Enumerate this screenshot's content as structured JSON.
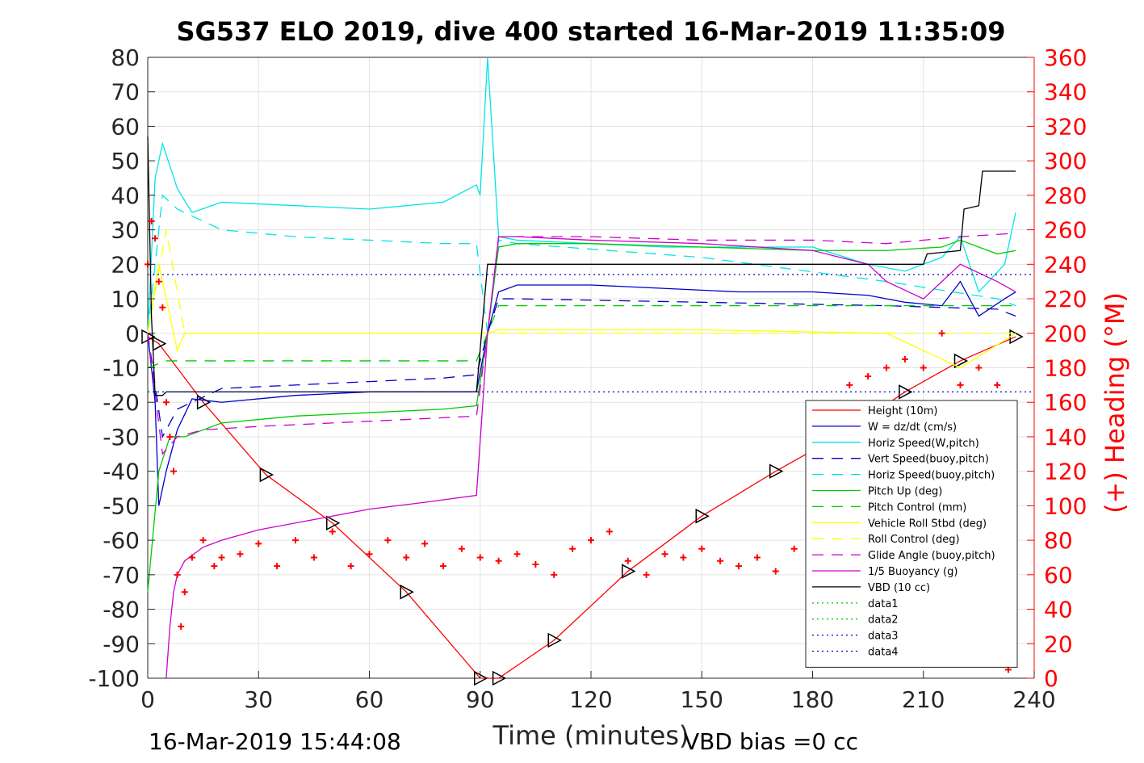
{
  "chart_data": {
    "type": "line",
    "title": "SG537 ELO 2019, dive 400 started 16-Mar-2019 11:35:09",
    "xlabel": "Time (minutes)",
    "ylabel_right": "(+) Heading (°M)",
    "footer_left": "16-Mar-2019 15:44:08",
    "footer_right": "VBD bias =0 cc",
    "xlim": [
      0,
      240
    ],
    "ylim": [
      -100,
      80
    ],
    "ylim_right": [
      0,
      360
    ],
    "x_ticks": [
      "0",
      "30",
      "60",
      "90",
      "120",
      "150",
      "180",
      "210",
      "240"
    ],
    "y_ticks": [
      "80",
      "70",
      "60",
      "50",
      "40",
      "30",
      "20",
      "10",
      "0",
      "-10",
      "-20",
      "-30",
      "-40",
      "-50",
      "-60",
      "-70",
      "-80",
      "-90",
      "-100"
    ],
    "y_ticks_right": [
      "360",
      "340",
      "320",
      "300",
      "280",
      "260",
      "240",
      "220",
      "200",
      "180",
      "160",
      "140",
      "120",
      "100",
      "80",
      "60",
      "40",
      "20",
      "0"
    ],
    "grid": true,
    "legend_position": "bottom-right",
    "series": [
      {
        "name": "Height (10m)",
        "color": "#ff0000",
        "style": "solid",
        "marker": "triangle",
        "x": [
          0,
          3,
          15,
          32,
          50,
          70,
          90,
          95,
          110,
          130,
          150,
          170,
          190,
          205,
          220,
          235
        ],
        "y": [
          -1,
          -3,
          -20,
          -41,
          -55,
          -75,
          -100,
          -100,
          -89,
          -69,
          -53,
          -40,
          -28,
          -17,
          -8,
          -1
        ]
      },
      {
        "name": "W = dz/dt (cm/s)",
        "color": "#0000cc",
        "style": "solid",
        "x": [
          0,
          2,
          3,
          5,
          8,
          12,
          20,
          40,
          60,
          80,
          89,
          92,
          95,
          100,
          120,
          140,
          160,
          180,
          195,
          205,
          215,
          220,
          225,
          232,
          235
        ],
        "y": [
          0,
          -20,
          -50,
          -40,
          -28,
          -19,
          -20,
          -18,
          -17,
          -17,
          -17,
          0,
          12,
          14,
          14,
          13,
          12,
          12,
          11,
          9,
          8,
          15,
          5,
          10,
          12
        ]
      },
      {
        "name": "Horiz Speed(W,pitch)",
        "color": "#00e5e5",
        "style": "solid",
        "x": [
          0,
          2,
          4,
          8,
          12,
          20,
          40,
          60,
          80,
          89,
          90,
          92,
          95,
          100,
          120,
          140,
          160,
          180,
          195,
          205,
          215,
          220,
          225,
          232,
          235
        ],
        "y": [
          0,
          45,
          55,
          42,
          35,
          38,
          37,
          36,
          38,
          43,
          40,
          80,
          28,
          27,
          26,
          25,
          25,
          25,
          20,
          18,
          22,
          28,
          12,
          20,
          35
        ]
      },
      {
        "name": "Vert Speed(buoy,pitch)",
        "color": "#0000cc",
        "style": "dashed",
        "x": [
          0,
          4,
          8,
          20,
          40,
          60,
          80,
          89,
          92,
          95,
          100,
          150,
          200,
          230,
          235
        ],
        "y": [
          0,
          -30,
          -22,
          -16,
          -15,
          -14,
          -13,
          -12,
          0,
          10,
          10,
          9,
          8,
          7,
          5
        ]
      },
      {
        "name": "Horiz Speed(buoy,pitch)",
        "color": "#00e5e5",
        "style": "dashed",
        "x": [
          0,
          4,
          8,
          20,
          40,
          60,
          80,
          89,
          92,
          95,
          100,
          150,
          200,
          230,
          235
        ],
        "y": [
          0,
          40,
          36,
          30,
          28,
          27,
          26,
          26,
          0,
          27,
          26,
          22,
          15,
          10,
          8
        ]
      },
      {
        "name": "Pitch Up (deg)",
        "color": "#00cc00",
        "style": "solid",
        "x": [
          0,
          3,
          6,
          10,
          20,
          40,
          60,
          80,
          89,
          92,
          95,
          100,
          120,
          150,
          180,
          200,
          215,
          220,
          230,
          235
        ],
        "y": [
          -75,
          -40,
          -30,
          -30,
          -26,
          -24,
          -23,
          -22,
          -21,
          0,
          25,
          26,
          26,
          25,
          24,
          24,
          25,
          27,
          23,
          24
        ]
      },
      {
        "name": "Pitch Control (mm)",
        "color": "#00cc00",
        "style": "dashed",
        "x": [
          0,
          5,
          10,
          20,
          40,
          60,
          80,
          89,
          92,
          95,
          100,
          150,
          200,
          235
        ],
        "y": [
          -10,
          -8,
          -8,
          -8,
          -8,
          -8,
          -8,
          -8,
          0,
          8,
          8,
          8,
          8,
          8
        ]
      },
      {
        "name": "Vehicle Roll Stbd (deg)",
        "color": "#ffff00",
        "style": "solid",
        "x": [
          0,
          3,
          8,
          10,
          20,
          40,
          60,
          80,
          89,
          92,
          95,
          100,
          150,
          200,
          220,
          235
        ],
        "y": [
          0,
          20,
          -5,
          0,
          0,
          0,
          0,
          0,
          0,
          0,
          1,
          1,
          1,
          0,
          -10,
          0
        ]
      },
      {
        "name": "Roll Control (deg)",
        "color": "#ffff00",
        "style": "dashed",
        "x": [
          0,
          5,
          10,
          20,
          40,
          60,
          80,
          89,
          92,
          95,
          120,
          150,
          200,
          235
        ],
        "y": [
          0,
          30,
          0,
          0,
          0,
          0,
          0,
          0,
          0,
          0,
          0,
          0,
          0,
          0
        ]
      },
      {
        "name": "Glide Angle (buoy,pitch)",
        "color": "#cc00cc",
        "style": "dashed",
        "x": [
          0,
          4,
          8,
          15,
          30,
          50,
          70,
          89,
          92,
          95,
          120,
          150,
          180,
          200,
          220,
          235
        ],
        "y": [
          0,
          -35,
          -30,
          -28,
          -27,
          -26,
          -25,
          -24,
          0,
          28,
          28,
          27,
          27,
          26,
          28,
          29
        ]
      },
      {
        "name": "1/5 Buoyancy (g)",
        "color": "#cc00cc",
        "style": "solid",
        "x": [
          5,
          6,
          7,
          8,
          10,
          15,
          20,
          30,
          45,
          60,
          75,
          89,
          92,
          95,
          100,
          120,
          150,
          180,
          195,
          200,
          210,
          220,
          230,
          235
        ],
        "y": [
          -100,
          -85,
          -75,
          -70,
          -66,
          -62,
          -60,
          -57,
          -54,
          -51,
          -49,
          -47,
          0,
          28,
          28,
          27,
          26,
          24,
          20,
          15,
          10,
          20,
          15,
          12
        ]
      },
      {
        "name": "VBD (10 cc)",
        "color": "#000000",
        "style": "solid",
        "x": [
          0,
          1,
          2,
          4,
          5,
          60,
          89,
          92,
          95,
          100,
          150,
          210,
          211,
          220,
          221,
          225,
          226,
          235
        ],
        "y": [
          57,
          5,
          -18,
          -18,
          -17,
          -17,
          -17,
          20,
          20,
          20,
          20,
          20,
          23,
          24,
          36,
          37,
          47,
          47
        ]
      },
      {
        "name": "data1",
        "color": "#00cc00",
        "style": "dotted",
        "x": [],
        "y": []
      },
      {
        "name": "data2",
        "color": "#00cc00",
        "style": "dotted",
        "x": [],
        "y": []
      },
      {
        "name": "data3",
        "color": "#0000cc",
        "style": "dotted",
        "x": [
          0,
          240
        ],
        "y": [
          17,
          17
        ]
      },
      {
        "name": "data4",
        "color": "#0000cc",
        "style": "dotted",
        "x": [
          0,
          240
        ],
        "y": [
          -17,
          -17
        ]
      }
    ],
    "heading_series": {
      "color": "#ff0000",
      "marker": "+",
      "axis": "right",
      "x": [
        0,
        1,
        2,
        3,
        4,
        5,
        6,
        7,
        8,
        9,
        10,
        12,
        15,
        18,
        20,
        25,
        30,
        35,
        40,
        45,
        50,
        55,
        60,
        65,
        70,
        75,
        80,
        85,
        90,
        95,
        100,
        105,
        110,
        115,
        120,
        125,
        130,
        135,
        140,
        145,
        150,
        155,
        160,
        165,
        170,
        175,
        180,
        185,
        190,
        195,
        200,
        205,
        210,
        215,
        220,
        225,
        230,
        233
      ],
      "y": [
        240,
        265,
        255,
        230,
        215,
        160,
        140,
        120,
        60,
        30,
        50,
        70,
        80,
        65,
        70,
        72,
        78,
        65,
        80,
        70,
        85,
        65,
        72,
        80,
        70,
        78,
        65,
        75,
        70,
        68,
        72,
        66,
        60,
        75,
        80,
        85,
        68,
        60,
        72,
        70,
        75,
        68,
        65,
        70,
        62,
        75,
        80,
        150,
        170,
        175,
        180,
        185,
        180,
        200,
        170,
        180,
        170,
        5
      ]
    }
  }
}
